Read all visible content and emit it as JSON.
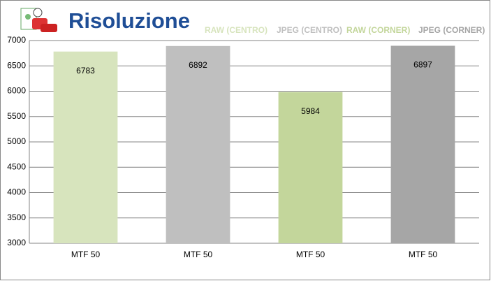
{
  "chart_data": {
    "type": "bar",
    "title": "Risoluzione",
    "categories": [
      "MTF 50",
      "MTF 50",
      "MTF 50",
      "MTF 50"
    ],
    "series": [
      {
        "name": "RAW (CENTRO)",
        "color": "#d7e4bd",
        "values": [
          6783,
          null,
          null,
          null
        ]
      },
      {
        "name": "JPEG (CENTRO)",
        "color": "#bfbfbf",
        "values": [
          null,
          6892,
          null,
          null
        ]
      },
      {
        "name": "RAW (CORNER)",
        "color": "#c3d69b",
        "values": [
          null,
          null,
          5984,
          null
        ]
      },
      {
        "name": "JPEG (CORNER)",
        "color": "#a6a6a6",
        "values": [
          null,
          null,
          null,
          6897
        ]
      }
    ],
    "ylim": [
      3000,
      7000
    ],
    "yticks": [
      3000,
      3500,
      4000,
      4500,
      5000,
      5500,
      6000,
      6500,
      7000
    ],
    "grid": true,
    "legend": "top"
  }
}
